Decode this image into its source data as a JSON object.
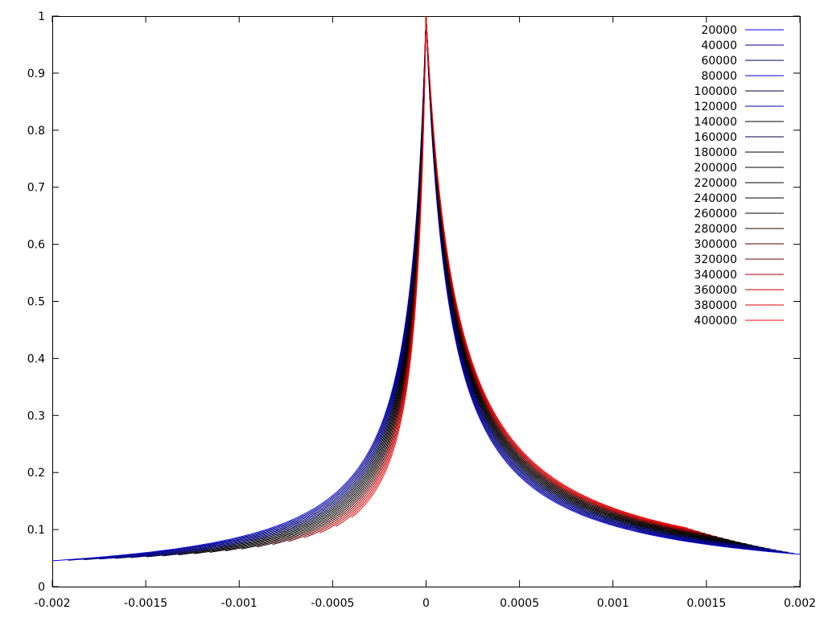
{
  "chart_data": {
    "type": "line",
    "title": "",
    "xlabel": "",
    "ylabel": "",
    "xlim": [
      -0.002,
      0.002
    ],
    "ylim": [
      0,
      1
    ],
    "x_ticks": [
      "-0.002",
      "-0.0015",
      "-0.001",
      "-0.0005",
      "0",
      "0.0005",
      "0.001",
      "0.0015",
      "0.002"
    ],
    "y_ticks": [
      "0",
      "0.1",
      "0.2",
      "0.3",
      "0.4",
      "0.5",
      "0.6",
      "0.7",
      "0.8",
      "0.9",
      "1"
    ],
    "grid": false,
    "legend_position": "top-right",
    "series": [
      {
        "name": "20000",
        "color": "#0000ff"
      },
      {
        "name": "40000",
        "color": "#00008b"
      },
      {
        "name": "60000",
        "color": "#000060"
      },
      {
        "name": "80000",
        "color": "#0000c8"
      },
      {
        "name": "100000",
        "color": "#000030"
      },
      {
        "name": "120000",
        "color": "#0000aa"
      },
      {
        "name": "140000",
        "color": "#000018"
      },
      {
        "name": "160000",
        "color": "#000040"
      },
      {
        "name": "180000",
        "color": "#000000"
      },
      {
        "name": "200000",
        "color": "#000000"
      },
      {
        "name": "220000",
        "color": "#000000"
      },
      {
        "name": "240000",
        "color": "#0a0000"
      },
      {
        "name": "260000",
        "color": "#140000"
      },
      {
        "name": "280000",
        "color": "#280000"
      },
      {
        "name": "300000",
        "color": "#500000"
      },
      {
        "name": "320000",
        "color": "#780000"
      },
      {
        "name": "340000",
        "color": "#a00000"
      },
      {
        "name": "360000",
        "color": "#c00000"
      },
      {
        "name": "380000",
        "color": "#dd0000"
      },
      {
        "name": "400000",
        "color": "#ff0000"
      }
    ]
  }
}
